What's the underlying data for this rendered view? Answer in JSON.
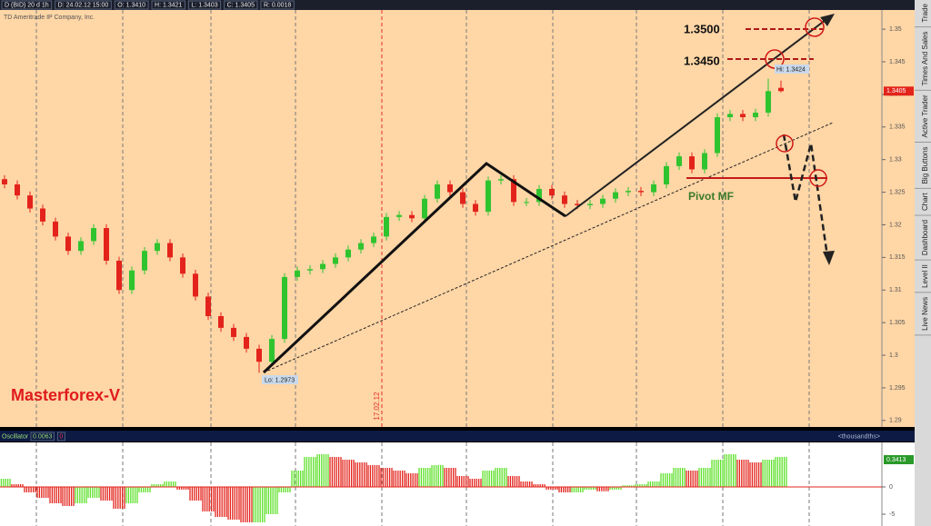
{
  "header": {
    "items": [
      "D (BID) 20 d 1h",
      "D: 24.02.12 15:00",
      "O: 1.3410",
      "H: 1.3421",
      "L: 1.3403",
      "C: 1.3405",
      "R: 0.0018"
    ],
    "company": "TD Ameritrade IP Company, Inc."
  },
  "tabs": [
    "Trade",
    "Times And Sales",
    "Active Trader",
    "Big Buttons",
    "Chart",
    "Dashboard",
    "Level II",
    "Live News"
  ],
  "annotations": {
    "level_high": "1.3500",
    "level_mid": "1.3450",
    "pivot": "Pivot MF",
    "brand": "Masterforex-V",
    "date_marker": "17.02.12",
    "lo_label": "Lo: 1.2973",
    "hi_label": "Hi: 1.3424"
  },
  "chart_data": [
    {
      "type": "candlestick",
      "up_color": "#2fc42f",
      "down_color": "#e3231b",
      "ylim": [
        1.289,
        1.3528
      ],
      "yticks": [
        1.29,
        1.295,
        1.3,
        1.305,
        1.31,
        1.315,
        1.32,
        1.325,
        1.33,
        1.335,
        1.34,
        1.345,
        1.35
      ],
      "candles": [
        [
          1.327,
          1.3276,
          1.3256,
          1.3262
        ],
        [
          1.3262,
          1.3268,
          1.3239,
          1.3245
        ],
        [
          1.3245,
          1.3251,
          1.3219,
          1.3225
        ],
        [
          1.3225,
          1.3231,
          1.3199,
          1.3205
        ],
        [
          1.3205,
          1.3211,
          1.3176,
          1.3182
        ],
        [
          1.3182,
          1.3188,
          1.3154,
          1.316
        ],
        [
          1.316,
          1.3181,
          1.3154,
          1.3175
        ],
        [
          1.3175,
          1.3201,
          1.3169,
          1.3195
        ],
        [
          1.3195,
          1.3201,
          1.3139,
          1.3145
        ],
        [
          1.3145,
          1.3151,
          1.3094,
          1.31
        ],
        [
          1.31,
          1.3136,
          1.3094,
          1.313
        ],
        [
          1.313,
          1.3166,
          1.3124,
          1.316
        ],
        [
          1.316,
          1.3178,
          1.3154,
          1.3172
        ],
        [
          1.3172,
          1.3178,
          1.3144,
          1.315
        ],
        [
          1.315,
          1.3156,
          1.3119,
          1.3125
        ],
        [
          1.3125,
          1.3131,
          1.3084,
          1.309
        ],
        [
          1.309,
          1.3096,
          1.3054,
          1.306
        ],
        [
          1.306,
          1.3066,
          1.3036,
          1.3042
        ],
        [
          1.3042,
          1.3048,
          1.3022,
          1.3028
        ],
        [
          1.3028,
          1.3034,
          1.3004,
          1.301
        ],
        [
          1.301,
          1.3016,
          1.2973,
          1.299
        ],
        [
          1.299,
          1.3031,
          1.2984,
          1.3025
        ],
        [
          1.3025,
          1.3126,
          1.3019,
          1.312
        ],
        [
          1.312,
          1.3136,
          1.3114,
          1.313
        ],
        [
          1.313,
          1.3138,
          1.3124,
          1.3132
        ],
        [
          1.3132,
          1.3146,
          1.3126,
          1.314
        ],
        [
          1.314,
          1.3156,
          1.3134,
          1.315
        ],
        [
          1.315,
          1.3168,
          1.3144,
          1.3162
        ],
        [
          1.3162,
          1.3178,
          1.3156,
          1.3172
        ],
        [
          1.3172,
          1.3188,
          1.3166,
          1.3182
        ],
        [
          1.3182,
          1.3218,
          1.3176,
          1.3212
        ],
        [
          1.3212,
          1.3221,
          1.3206,
          1.3215
        ],
        [
          1.3215,
          1.3221,
          1.3204,
          1.321
        ],
        [
          1.321,
          1.3246,
          1.3204,
          1.324
        ],
        [
          1.324,
          1.3268,
          1.3234,
          1.3262
        ],
        [
          1.3262,
          1.3268,
          1.3244,
          1.325
        ],
        [
          1.325,
          1.3256,
          1.3226,
          1.3232
        ],
        [
          1.3232,
          1.3238,
          1.3214,
          1.322
        ],
        [
          1.322,
          1.3274,
          1.3214,
          1.3268
        ],
        [
          1.3268,
          1.3276,
          1.3262,
          1.327
        ],
        [
          1.327,
          1.3276,
          1.3229,
          1.3235
        ],
        [
          1.3235,
          1.3241,
          1.3229,
          1.3235
        ],
        [
          1.3235,
          1.3261,
          1.3229,
          1.3255
        ],
        [
          1.3255,
          1.3261,
          1.3239,
          1.3245
        ],
        [
          1.3245,
          1.3251,
          1.3226,
          1.3232
        ],
        [
          1.3232,
          1.3238,
          1.3224,
          1.323
        ],
        [
          1.323,
          1.3238,
          1.3224,
          1.3232
        ],
        [
          1.3232,
          1.3246,
          1.3226,
          1.324
        ],
        [
          1.324,
          1.3256,
          1.3234,
          1.325
        ],
        [
          1.325,
          1.3258,
          1.3244,
          1.3252
        ],
        [
          1.3252,
          1.3258,
          1.3244,
          1.325
        ],
        [
          1.325,
          1.3268,
          1.3244,
          1.3262
        ],
        [
          1.3262,
          1.3296,
          1.3256,
          1.329
        ],
        [
          1.329,
          1.3311,
          1.3284,
          1.3305
        ],
        [
          1.3305,
          1.3311,
          1.3279,
          1.3285
        ],
        [
          1.3285,
          1.3316,
          1.3279,
          1.331
        ],
        [
          1.331,
          1.3371,
          1.3304,
          1.3365
        ],
        [
          1.3365,
          1.3376,
          1.3359,
          1.337
        ],
        [
          1.337,
          1.3376,
          1.3359,
          1.3365
        ],
        [
          1.3365,
          1.3378,
          1.3359,
          1.3372
        ],
        [
          1.3372,
          1.3424,
          1.3366,
          1.3405
        ],
        [
          1.341,
          1.3421,
          1.3403,
          1.3405
        ]
      ]
    },
    {
      "type": "bar",
      "title": "Oscillator",
      "header_values": [
        "0.0063",
        "0"
      ],
      "unit_label": "<thousandths>",
      "last_value": 0.3413,
      "up_color": "#5ee02a",
      "down_color": "#e3231b",
      "ylim": [
        -7,
        8
      ],
      "yticks": [
        0,
        -5
      ],
      "values": [
        1.5,
        0.5,
        -1.0,
        -2.0,
        -3.0,
        -3.5,
        -3.0,
        -2.0,
        -2.5,
        -4.0,
        -3.0,
        -1.0,
        0.5,
        1.0,
        -0.5,
        -2.5,
        -4.5,
        -5.5,
        -6.0,
        -6.5,
        -6.5,
        -5.0,
        -1.0,
        3.0,
        5.5,
        6.0,
        5.5,
        5.0,
        4.5,
        4.0,
        3.5,
        3.0,
        2.5,
        3.5,
        4.0,
        3.5,
        2.0,
        1.5,
        3.0,
        3.5,
        2.0,
        1.0,
        0.5,
        -0.5,
        -1.0,
        -1.0,
        -0.5,
        -0.8,
        -0.5,
        0.3,
        0.5,
        1.0,
        2.5,
        3.5,
        3.0,
        3.5,
        5.0,
        6.0,
        5.0,
        4.5,
        5.0,
        5.5
      ]
    }
  ]
}
